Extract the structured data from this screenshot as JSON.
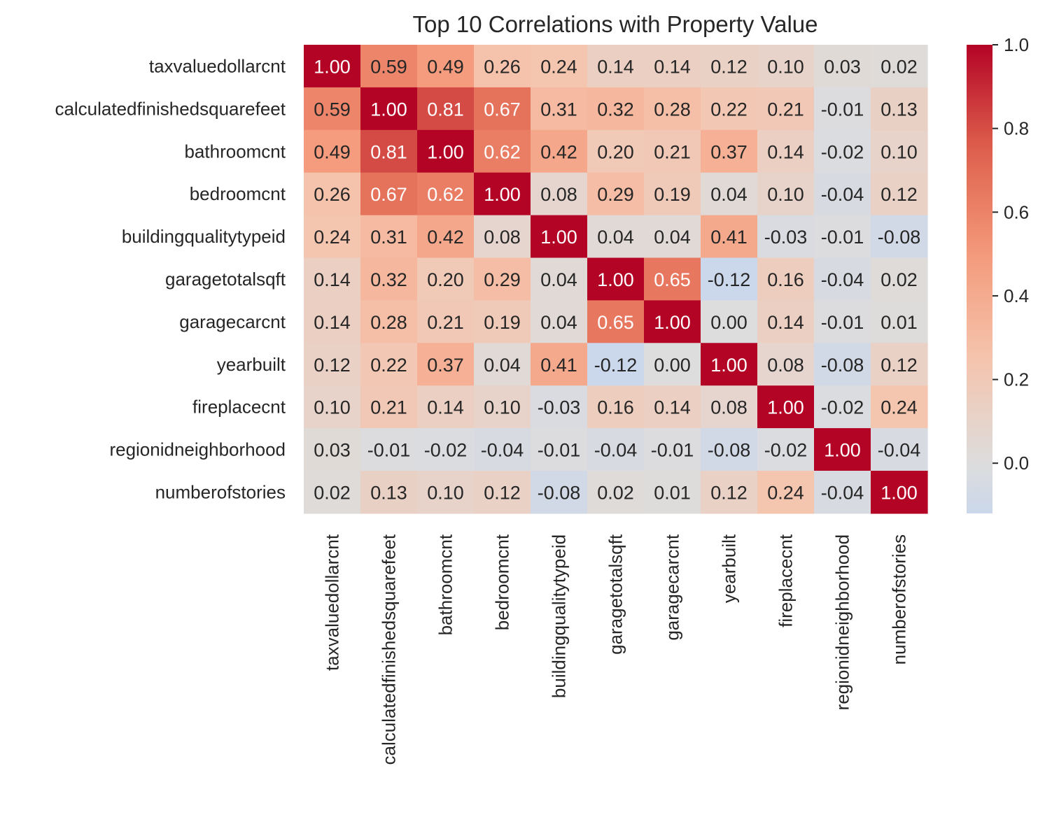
{
  "chart_data": {
    "type": "heatmap",
    "title": "Top 10 Correlations with Property Value",
    "labels": [
      "taxvaluedollarcnt",
      "calculatedfinishedsquarefeet",
      "bathroomcnt",
      "bedroomcnt",
      "buildingqualitytypeid",
      "garagetotalsqft",
      "garagecarcnt",
      "yearbuilt",
      "fireplacecnt",
      "regionidneighborhood",
      "numberofstories"
    ],
    "matrix": [
      [
        1.0,
        0.59,
        0.49,
        0.26,
        0.24,
        0.14,
        0.14,
        0.12,
        0.1,
        0.03,
        0.02
      ],
      [
        0.59,
        1.0,
        0.81,
        0.67,
        0.31,
        0.32,
        0.28,
        0.22,
        0.21,
        -0.01,
        0.13
      ],
      [
        0.49,
        0.81,
        1.0,
        0.62,
        0.42,
        0.2,
        0.21,
        0.37,
        0.14,
        -0.02,
        0.1
      ],
      [
        0.26,
        0.67,
        0.62,
        1.0,
        0.08,
        0.29,
        0.19,
        0.04,
        0.1,
        -0.04,
        0.12
      ],
      [
        0.24,
        0.31,
        0.42,
        0.08,
        1.0,
        0.04,
        0.04,
        0.41,
        -0.03,
        -0.01,
        -0.08
      ],
      [
        0.14,
        0.32,
        0.2,
        0.29,
        0.04,
        1.0,
        0.65,
        -0.12,
        0.16,
        -0.04,
        0.02
      ],
      [
        0.14,
        0.28,
        0.21,
        0.19,
        0.04,
        0.65,
        1.0,
        0.0,
        0.14,
        -0.01,
        0.01
      ],
      [
        0.12,
        0.22,
        0.37,
        0.04,
        0.41,
        -0.12,
        0.0,
        1.0,
        0.08,
        -0.08,
        0.12
      ],
      [
        0.1,
        0.21,
        0.14,
        0.1,
        -0.03,
        0.16,
        0.14,
        0.08,
        1.0,
        -0.02,
        0.24
      ],
      [
        0.03,
        -0.01,
        -0.02,
        -0.04,
        -0.01,
        -0.04,
        -0.01,
        -0.08,
        -0.02,
        1.0,
        -0.04
      ],
      [
        0.02,
        0.13,
        0.1,
        0.12,
        -0.08,
        0.02,
        0.01,
        0.12,
        0.24,
        -0.04,
        1.0
      ]
    ],
    "colormap": "coolwarm",
    "center": 0,
    "colorbar_range": [
      -0.12,
      1.0
    ],
    "colorbar_ticks": [
      0.0,
      0.2,
      0.4,
      0.6,
      0.8,
      1.0
    ],
    "colorbar_tick_labels": [
      "0.0",
      "0.2",
      "0.4",
      "0.6",
      "0.8",
      "1.0"
    ],
    "annotation_format": "0.00"
  }
}
